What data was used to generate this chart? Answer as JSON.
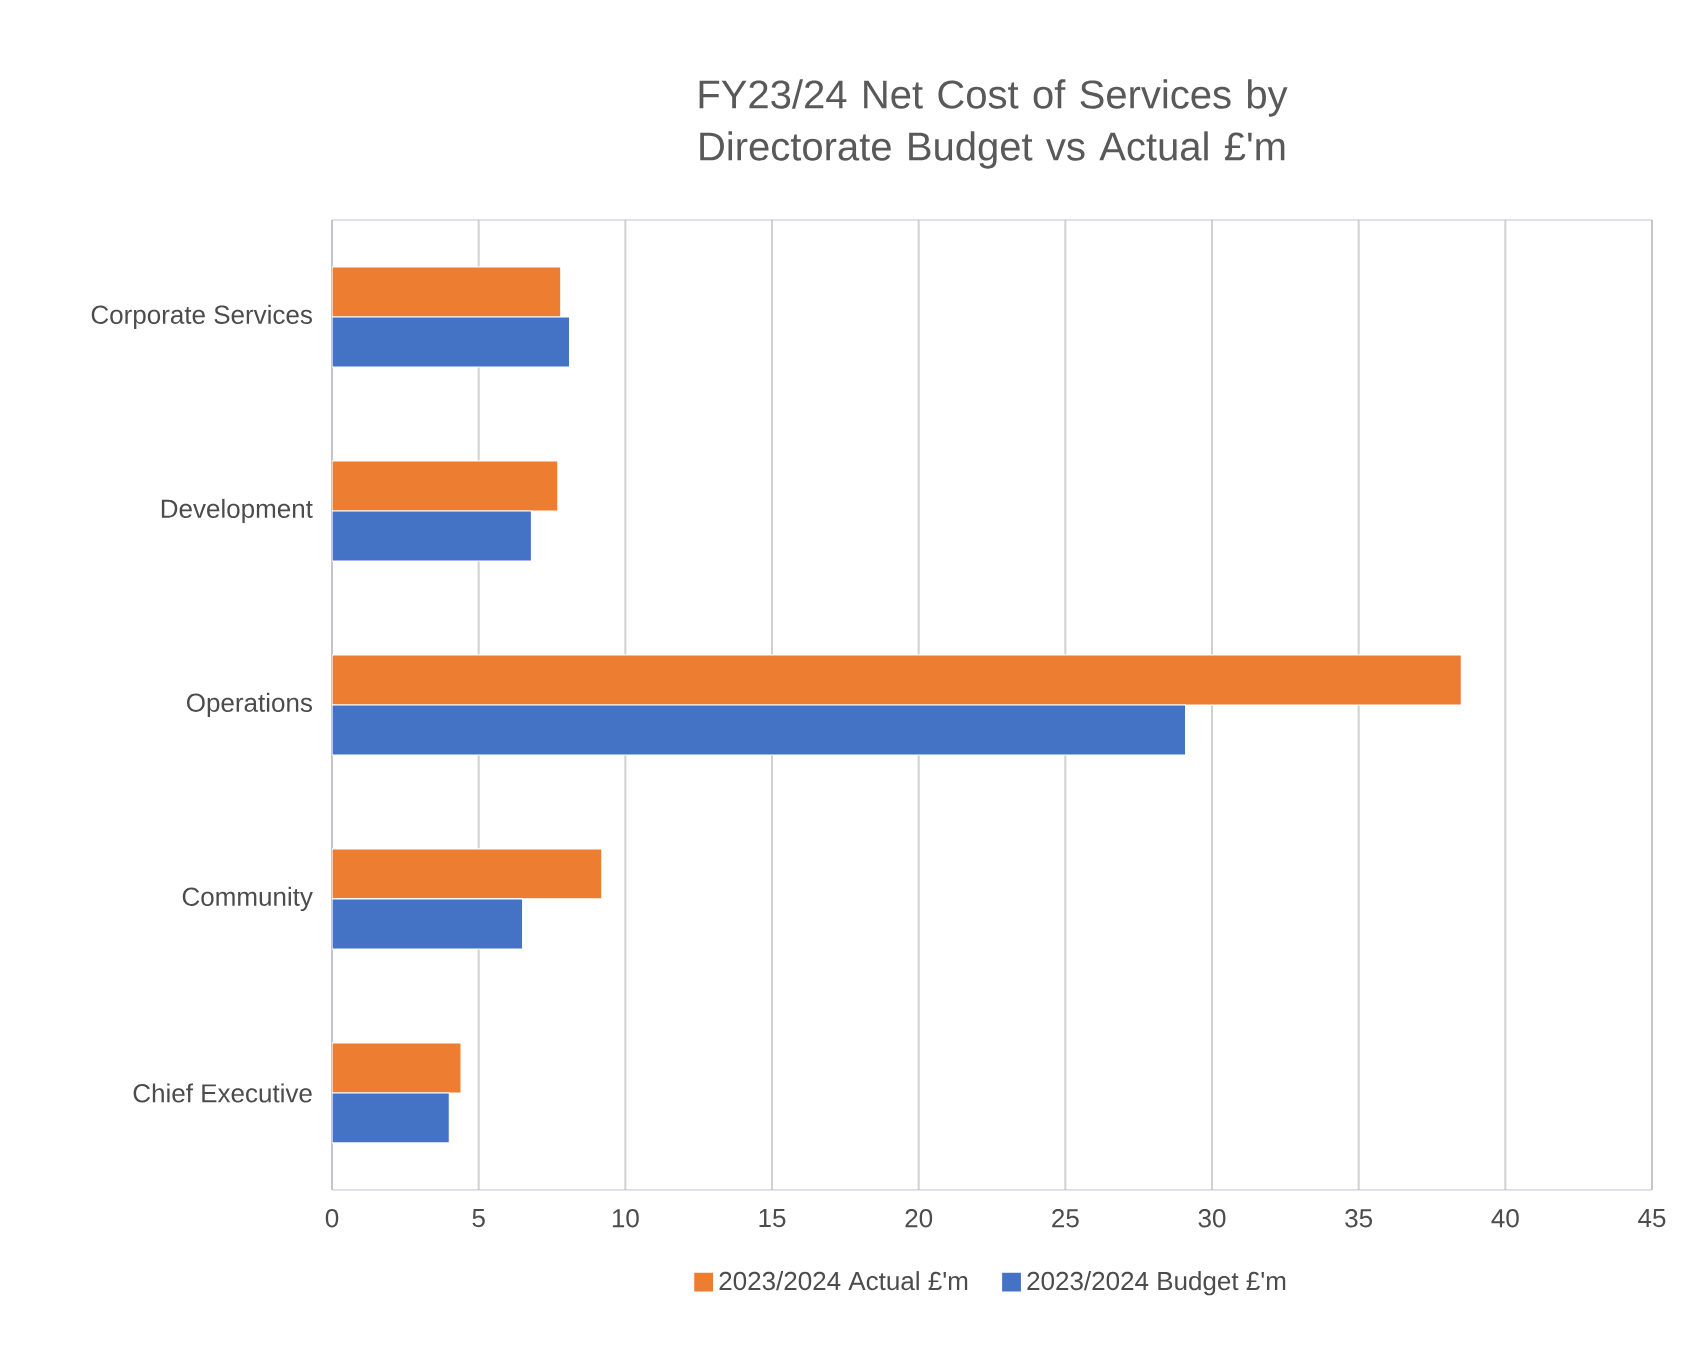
{
  "chart_data": {
    "type": "bar",
    "orientation": "horizontal",
    "title": "FY23/24 Net Cost of Services by Directorate Budget vs Actual £'m",
    "categories": [
      "Corporate Services",
      "Development",
      "Operations",
      "Community",
      "Chief Executive"
    ],
    "series": [
      {
        "name": "2023/2024 Actual £'m",
        "color": "#ed7d31",
        "values": [
          7.8,
          7.7,
          38.5,
          9.2,
          4.4
        ]
      },
      {
        "name": "2023/2024 Budget £'m",
        "color": "#4472c4",
        "values": [
          8.1,
          6.8,
          29.1,
          6.5,
          4.0
        ]
      }
    ],
    "xlim": [
      0,
      45
    ],
    "xticks": [
      0,
      5,
      10,
      15,
      20,
      25,
      30,
      35,
      40,
      45
    ],
    "grid": "x",
    "legend": "bottom"
  }
}
